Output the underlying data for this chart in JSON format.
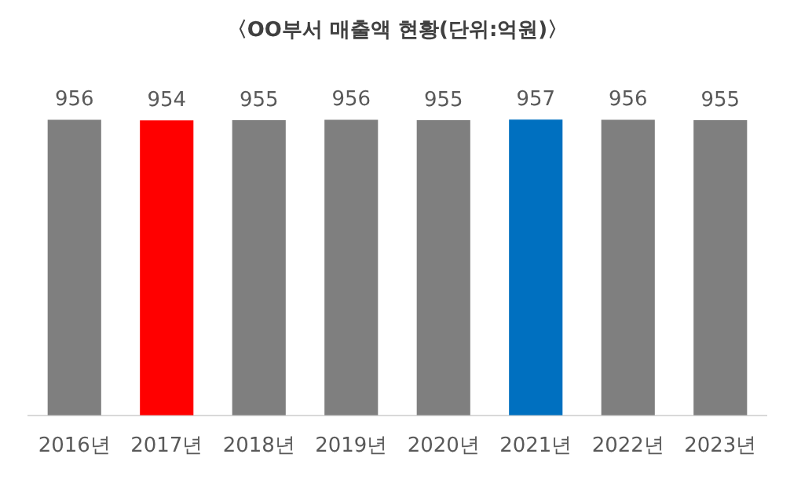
{
  "chart_data": {
    "type": "bar",
    "title": "〈OO부서 매출액 현황(단위:억원)〉",
    "categories": [
      "2016년",
      "2017년",
      "2018년",
      "2019년",
      "2020년",
      "2021년",
      "2022년",
      "2023년"
    ],
    "values": [
      956,
      954,
      955,
      956,
      955,
      957,
      956,
      955
    ],
    "colors": [
      "#7f7f7f",
      "#ff0000",
      "#7f7f7f",
      "#7f7f7f",
      "#7f7f7f",
      "#0070c0",
      "#7f7f7f",
      "#7f7f7f"
    ],
    "tick_labels": "x",
    "data_labels": true,
    "grid": false,
    "legend": false
  }
}
